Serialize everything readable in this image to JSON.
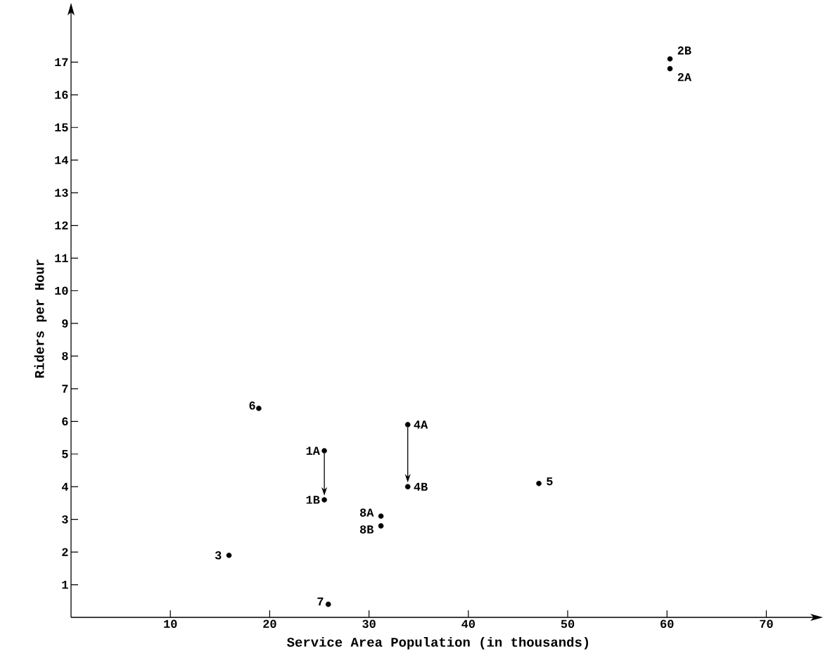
{
  "chart_data": {
    "type": "scatter",
    "xlabel": "Service Area Population (in thousands)",
    "ylabel": "Riders per Hour",
    "xlim": [
      0,
      74
    ],
    "ylim": [
      0,
      18.3
    ],
    "xticks": [
      10,
      20,
      30,
      40,
      50,
      60,
      70
    ],
    "yticks": [
      1,
      2,
      3,
      4,
      5,
      6,
      7,
      8,
      9,
      10,
      11,
      12,
      13,
      14,
      15,
      16,
      17
    ],
    "grid": false,
    "marker": "circle",
    "series": [
      {
        "color": "#000000",
        "x": [
          18.9,
          25.5,
          25.5,
          33.9,
          33.9,
          47.1,
          31.2,
          31.2,
          15.9,
          25.9,
          60.3,
          60.3
        ],
        "values": [
          6.4,
          5.1,
          3.6,
          5.9,
          4.0,
          4.1,
          3.1,
          2.8,
          1.9,
          0.4,
          17.1,
          16.8
        ]
      }
    ],
    "annotations": [
      {
        "text": "6",
        "x": 18.9,
        "y": 6.4
      },
      {
        "text": "1A",
        "x": 25.5,
        "y": 5.1
      },
      {
        "text": "1B",
        "x": 25.5,
        "y": 3.6
      },
      {
        "text": "4A",
        "x": 33.9,
        "y": 5.9
      },
      {
        "text": "4B",
        "x": 33.9,
        "y": 4.0
      },
      {
        "text": "5",
        "x": 47.1,
        "y": 4.1
      },
      {
        "text": "8A",
        "x": 31.2,
        "y": 3.1
      },
      {
        "text": "8B",
        "x": 31.2,
        "y": 2.8
      },
      {
        "text": "3",
        "x": 15.9,
        "y": 1.9
      },
      {
        "text": "7",
        "x": 25.9,
        "y": 0.4
      },
      {
        "text": "2B",
        "x": 60.3,
        "y": 17.1
      },
      {
        "text": "2A",
        "x": 60.3,
        "y": 16.8
      }
    ]
  }
}
